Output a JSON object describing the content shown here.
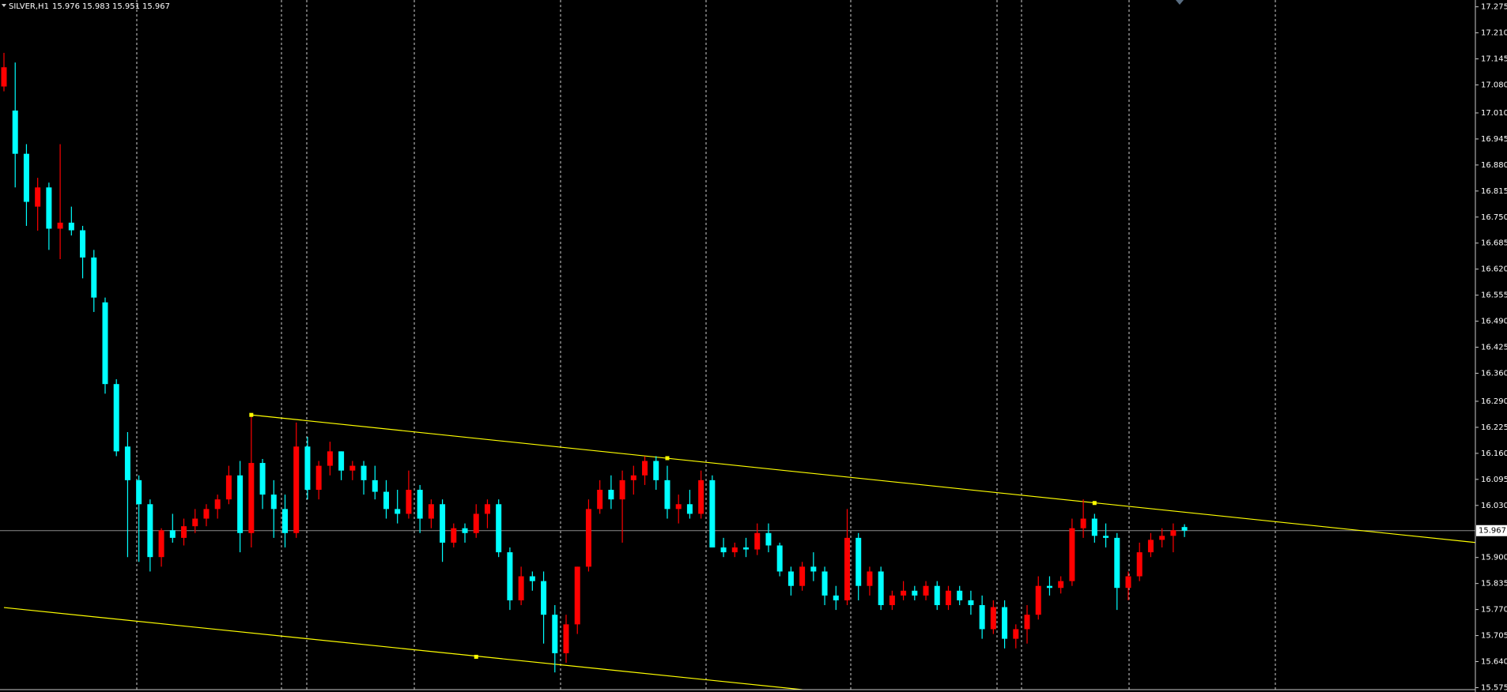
{
  "chart_data": {
    "type": "candlestick",
    "title": "SILVER,H1",
    "up_color": "#ff0000",
    "down_color": "#00ffff",
    "trendline_color": "#ffff00",
    "price_line_color": "#8a8a8a",
    "x": [
      0,
      1,
      2,
      3,
      4,
      5,
      6,
      7,
      8,
      9,
      10,
      11,
      12,
      13,
      14,
      15,
      16,
      17,
      18,
      19,
      20,
      21,
      22,
      23,
      24,
      25,
      26,
      27,
      28,
      29,
      30,
      31,
      32,
      33,
      34,
      35,
      36,
      37,
      38,
      39,
      40,
      41,
      42,
      43,
      44,
      45,
      46,
      47,
      48,
      49,
      50,
      51,
      52,
      53,
      54,
      55,
      56,
      57,
      58,
      59,
      60,
      61,
      62,
      63,
      64,
      65,
      66,
      67,
      68,
      69,
      70,
      71,
      72,
      73,
      74,
      75,
      76,
      77,
      78,
      79,
      80,
      81,
      82,
      83,
      84,
      85,
      86,
      87,
      88,
      89,
      90,
      91,
      92,
      93,
      94,
      95,
      96,
      97,
      98,
      99,
      100,
      101,
      102,
      103,
      104,
      105
    ],
    "open": [
      17.076,
      17.016,
      16.908,
      16.776,
      16.824,
      16.721,
      16.736,
      16.717,
      16.649,
      16.537,
      16.333,
      16.177,
      16.093,
      16.033,
      15.901,
      15.968,
      15.949,
      15.978,
      15.997,
      16.021,
      16.045,
      16.105,
      15.961,
      16.136,
      16.057,
      16.021,
      15.961,
      16.177,
      16.069,
      16.129,
      16.165,
      16.117,
      16.129,
      16.093,
      16.064,
      16.021,
      16.009,
      16.069,
      15.997,
      16.033,
      15.937,
      15.973,
      15.961,
      16.009,
      16.033,
      15.913,
      15.793,
      15.853,
      15.841,
      15.757,
      15.661,
      15.733,
      15.877,
      16.021,
      16.069,
      16.045,
      16.093,
      16.105,
      16.141,
      16.093,
      16.021,
      16.033,
      16.009,
      16.093,
      15.925,
      15.913,
      15.925,
      15.92,
      15.961,
      15.93,
      15.865,
      15.829,
      15.877,
      15.865,
      15.805,
      15.793,
      15.949,
      15.829,
      15.865,
      15.781,
      15.805,
      15.817,
      15.805,
      15.829,
      15.781,
      15.817,
      15.793,
      15.781,
      15.721,
      15.776,
      15.697,
      15.721,
      15.757,
      15.829,
      15.824,
      15.841,
      15.973,
      15.997,
      15.954,
      15.949,
      15.824,
      15.853,
      15.913,
      15.944,
      15.954,
      15.976
    ],
    "high": [
      17.16,
      17.136,
      16.932,
      16.848,
      16.836,
      16.932,
      16.776,
      16.728,
      16.668,
      16.549,
      16.345,
      16.213,
      16.105,
      16.045,
      15.973,
      16.009,
      15.997,
      16.021,
      16.033,
      16.057,
      16.129,
      16.141,
      16.256,
      16.146,
      16.093,
      16.057,
      16.237,
      16.201,
      16.141,
      16.189,
      16.165,
      16.141,
      16.141,
      16.129,
      16.093,
      16.069,
      16.117,
      16.081,
      16.045,
      16.045,
      15.985,
      15.985,
      16.033,
      16.045,
      16.045,
      15.925,
      15.877,
      15.865,
      15.865,
      15.781,
      15.757,
      15.877,
      16.045,
      16.093,
      16.105,
      16.117,
      16.129,
      16.153,
      16.153,
      16.129,
      16.057,
      16.069,
      16.117,
      16.105,
      15.949,
      15.937,
      15.949,
      15.985,
      15.985,
      15.937,
      15.877,
      15.889,
      15.913,
      15.877,
      15.829,
      16.021,
      15.961,
      15.877,
      15.877,
      15.817,
      15.841,
      15.829,
      15.841,
      15.841,
      15.829,
      15.829,
      15.817,
      15.805,
      15.793,
      15.793,
      15.733,
      15.781,
      15.853,
      15.853,
      15.853,
      15.997,
      16.045,
      16.009,
      15.985,
      15.961,
      15.865,
      15.937,
      15.961,
      15.973,
      15.985,
      15.983
    ],
    "low": [
      17.064,
      16.824,
      16.728,
      16.716,
      16.668,
      16.645,
      16.704,
      16.597,
      16.513,
      16.309,
      16.153,
      15.901,
      15.889,
      15.865,
      15.877,
      15.937,
      15.93,
      15.961,
      15.978,
      15.997,
      16.033,
      15.913,
      15.925,
      16.021,
      15.949,
      15.925,
      15.949,
      16.045,
      16.045,
      16.105,
      16.093,
      16.093,
      16.057,
      16.045,
      15.997,
      15.985,
      15.997,
      15.961,
      15.973,
      15.889,
      15.925,
      15.937,
      15.949,
      15.973,
      15.901,
      15.769,
      15.781,
      15.817,
      15.685,
      15.613,
      15.637,
      15.709,
      15.865,
      16.009,
      16.021,
      15.937,
      16.057,
      16.081,
      16.069,
      15.997,
      15.985,
      15.997,
      15.997,
      15.925,
      15.901,
      15.901,
      15.901,
      15.906,
      15.913,
      15.853,
      15.805,
      15.817,
      15.841,
      15.781,
      15.769,
      15.781,
      15.793,
      15.805,
      15.769,
      15.769,
      15.793,
      15.793,
      15.793,
      15.769,
      15.769,
      15.781,
      15.757,
      15.697,
      15.709,
      15.673,
      15.673,
      15.685,
      15.745,
      15.805,
      15.81,
      15.829,
      15.949,
      15.937,
      15.925,
      15.769,
      15.793,
      15.841,
      15.901,
      15.925,
      15.913,
      15.951
    ],
    "close": [
      17.124,
      16.908,
      16.788,
      16.824,
      16.721,
      16.736,
      16.717,
      16.649,
      16.549,
      16.333,
      16.165,
      16.093,
      16.033,
      15.901,
      15.968,
      15.949,
      15.978,
      15.997,
      16.021,
      16.045,
      16.105,
      15.961,
      16.136,
      16.057,
      16.021,
      15.961,
      16.177,
      16.069,
      16.129,
      16.165,
      16.117,
      16.129,
      16.093,
      16.064,
      16.021,
      16.009,
      16.069,
      15.997,
      16.033,
      15.937,
      15.973,
      15.961,
      16.009,
      16.033,
      15.913,
      15.793,
      15.853,
      15.841,
      15.757,
      15.661,
      15.733,
      15.877,
      16.021,
      16.069,
      16.045,
      16.093,
      16.105,
      16.141,
      16.093,
      16.021,
      16.033,
      16.009,
      16.093,
      15.925,
      15.913,
      15.925,
      15.92,
      15.961,
      15.93,
      15.865,
      15.829,
      15.877,
      15.865,
      15.805,
      15.793,
      15.949,
      15.829,
      15.865,
      15.781,
      15.805,
      15.817,
      15.805,
      15.829,
      15.781,
      15.817,
      15.793,
      15.781,
      15.721,
      15.776,
      15.697,
      15.721,
      15.757,
      15.829,
      15.824,
      15.841,
      15.973,
      15.997,
      15.954,
      15.949,
      15.824,
      15.853,
      15.913,
      15.944,
      15.954,
      15.968,
      15.967
    ],
    "trendlines": [
      {
        "x": [
          22,
          131
        ],
        "y": [
          16.256,
          15.937
        ]
      },
      {
        "x": [
          0,
          71
        ],
        "y": [
          15.775,
          15.57
        ]
      }
    ],
    "anchors": {
      "x": [
        22,
        59,
        97,
        42
      ],
      "y": [
        16.256,
        16.148,
        16.036,
        15.652
      ]
    },
    "xlim": [
      0,
      131
    ],
    "ylim": [
      15.57,
      17.292
    ],
    "yticks": [
      17.275,
      {
        "value": 17.21,
        "label": "17.210"
      },
      17.145,
      {
        "value": 17.08,
        "label": "17.080"
      },
      {
        "value": 17.01,
        "label": "17.010"
      },
      16.945,
      {
        "value": 16.88,
        "label": "16.880"
      },
      16.815,
      {
        "value": 16.75,
        "label": "16.750"
      },
      16.685,
      {
        "value": 16.62,
        "label": "16.620"
      },
      16.555,
      {
        "value": 16.49,
        "label": "16.490"
      },
      16.425,
      {
        "value": 16.36,
        "label": "16.360"
      },
      {
        "value": 16.29,
        "label": "16.290"
      },
      16.225,
      {
        "value": 16.16,
        "label": "16.160"
      },
      16.095,
      {
        "value": 16.03,
        "label": "16.030"
      },
      {
        "value": 15.9,
        "label": "15.900"
      },
      15.835,
      {
        "value": 15.77,
        "label": "15.770"
      },
      15.705,
      {
        "value": 15.64,
        "label": "15.640"
      },
      15.575
    ]
  }
}
